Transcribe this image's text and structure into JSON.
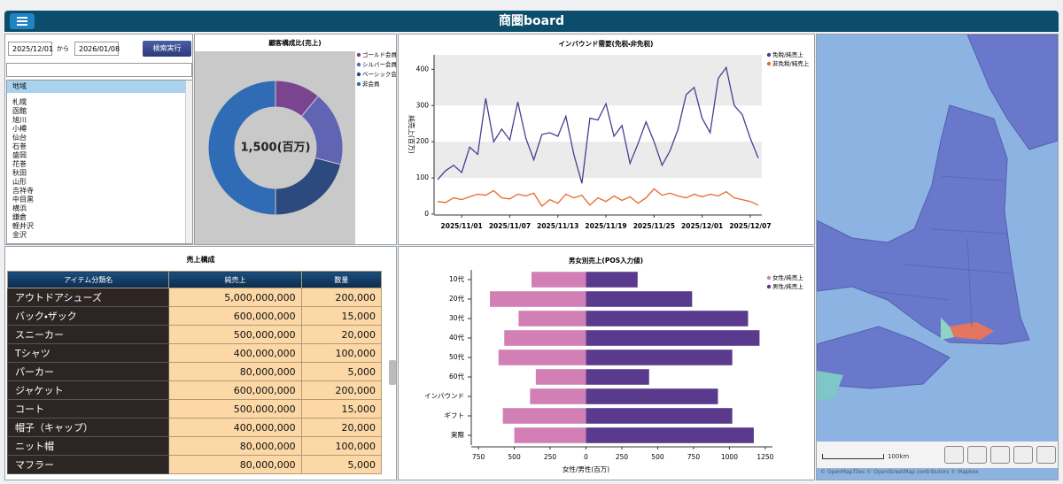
{
  "header": {
    "title": "商圏board"
  },
  "filters": {
    "date_from": "2025/12/01",
    "separator": "から",
    "date_to": "2026/01/08",
    "button": "検索実行"
  },
  "region_list": {
    "header": "地域",
    "items": [
      "札幌",
      "函館",
      "旭川",
      "小樽",
      "仙台",
      "石巻",
      "盛岡",
      "花巻",
      "秋田",
      "山形",
      "吉祥寺",
      "中目黒",
      "横浜",
      "鎌倉",
      "軽井沢",
      "金沢"
    ]
  },
  "chart_data": [
    {
      "type": "donut",
      "title": "顧客構成比(売上)",
      "center_label": "1,500(百万)",
      "categories": [
        "ゴールド会員",
        "シルバー会員",
        "ベーシック会員",
        "非会員"
      ],
      "values": [
        11,
        18,
        21,
        50
      ],
      "colors": [
        "#7a4490",
        "#6163b3",
        "#2d4a7e",
        "#2f6cb5"
      ],
      "legend": "right"
    },
    {
      "type": "line",
      "title": "インバウンド需要(免税・非免税)",
      "y_label": "純売上(百万)",
      "categories": [
        null,
        null,
        null,
        "2025/11/01",
        null,
        null,
        null,
        null,
        null,
        "2025/11/07",
        null,
        null,
        null,
        null,
        null,
        "2025/11/13",
        null,
        null,
        null,
        null,
        null,
        "2025/11/19",
        null,
        null,
        null,
        null,
        null,
        "2025/11/25",
        null,
        null,
        null,
        null,
        null,
        "2025/12/01",
        null,
        null,
        null,
        null,
        null,
        "2025/12/07",
        null
      ],
      "series": [
        {
          "name": "免税/純売上",
          "color": "#4b3d8f",
          "values": [
            95,
            120,
            135,
            115,
            185,
            165,
            320,
            200,
            235,
            205,
            310,
            210,
            150,
            220,
            225,
            215,
            270,
            165,
            85,
            265,
            260,
            305,
            215,
            245,
            140,
            195,
            255,
            200,
            135,
            175,
            235,
            330,
            350,
            265,
            225,
            375,
            405,
            300,
            275,
            210,
            155
          ]
        },
        {
          "name": "非免税/純売上",
          "color": "#e8672a",
          "values": [
            35,
            32,
            45,
            40,
            48,
            55,
            52,
            65,
            45,
            42,
            55,
            50,
            58,
            22,
            40,
            30,
            55,
            45,
            52,
            25,
            45,
            35,
            50,
            38,
            48,
            30,
            45,
            70,
            52,
            58,
            50,
            45,
            55,
            48,
            55,
            50,
            62,
            45,
            40,
            35,
            25
          ]
        }
      ],
      "ylim": [
        0,
        440
      ],
      "yticks": [
        0,
        100,
        200,
        300,
        400
      ],
      "grid": "bands",
      "legend": "top-right"
    },
    {
      "type": "diverging-bar",
      "title": "男女別売上(POS入力値)",
      "x_label": "女性/男性(百万)",
      "categories": [
        "10代",
        "20代",
        "30代",
        "40代",
        "50代",
        "60代",
        "インバウンド",
        "ギフト",
        "実際"
      ],
      "series": [
        {
          "name": "女性/純売上",
          "color": "#d27fb6",
          "values": [
            -380,
            -670,
            -470,
            -570,
            -610,
            -350,
            -390,
            -580,
            -500
          ]
        },
        {
          "name": "男性/純売上",
          "color": "#5a3a8d",
          "values": [
            360,
            740,
            1130,
            1210,
            1020,
            440,
            920,
            1020,
            1170
          ]
        }
      ],
      "xlim": [
        -800,
        1300
      ],
      "xticks": [
        {
          "value": -750,
          "label": "750"
        },
        {
          "value": -500,
          "label": "500"
        },
        {
          "value": -250,
          "label": "250"
        },
        0,
        250,
        500,
        750,
        1000,
        1250
      ],
      "legend": "top-right"
    }
  ],
  "table": {
    "title": "売上構成",
    "columns": [
      "アイテム分類名",
      "純売上",
      "数量"
    ],
    "rows": [
      [
        "アウトドアシューズ",
        "5,000,000,000",
        "200,000"
      ],
      [
        "バック・ザック",
        "600,000,000",
        "15,000"
      ],
      [
        "スニーカー",
        "500,000,000",
        "20,000"
      ],
      [
        "Tシャツ",
        "400,000,000",
        "100,000"
      ],
      [
        "パーカー",
        "80,000,000",
        "5,000"
      ],
      [
        "ジャケット",
        "600,000,000",
        "200,000"
      ],
      [
        "コート",
        "500,000,000",
        "15,000"
      ],
      [
        "帽子（キャップ）",
        "400,000,000",
        "20,000"
      ],
      [
        "ニット帽",
        "80,000,000",
        "100,000"
      ],
      [
        "マフラー",
        "80,000,000",
        "5,000"
      ]
    ]
  },
  "map": {
    "scale_label": "100km",
    "attribution": "© OpenMapTiles © OpenStreetMap contributors © Mapbox"
  }
}
